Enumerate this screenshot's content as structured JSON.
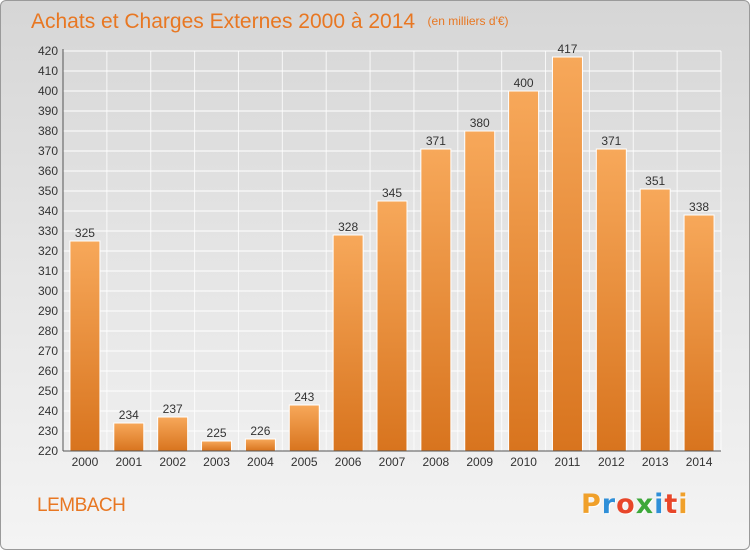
{
  "title": "Achats et Charges Externes 2000 à 2014",
  "unit_note": "(en milliers d'€)",
  "commune": "LEMBACH",
  "logo": {
    "text": "Proxiti",
    "letter_colors": [
      "#f0a02a",
      "#2f8fd8",
      "#e8462a",
      "#3da83a",
      "#2f8fd8",
      "#e8462a",
      "#f0a02a"
    ]
  },
  "colors": {
    "accent": "#e87722",
    "bar_top": "#f7a85a",
    "bar_bottom": "#d8741e",
    "grid": "#ffffff",
    "tick_text": "#333333"
  },
  "chart_data": {
    "type": "bar",
    "categories": [
      "2000",
      "2001",
      "2002",
      "2003",
      "2004",
      "2005",
      "2006",
      "2007",
      "2008",
      "2009",
      "2010",
      "2011",
      "2012",
      "2013",
      "2014"
    ],
    "values": [
      325,
      234,
      237,
      225,
      226,
      243,
      328,
      345,
      371,
      380,
      400,
      417,
      371,
      351,
      338
    ],
    "ylim": [
      220,
      420
    ],
    "yticks": [
      220,
      230,
      240,
      250,
      260,
      270,
      280,
      290,
      300,
      310,
      320,
      330,
      340,
      350,
      360,
      370,
      380,
      390,
      400,
      410,
      420
    ],
    "grid": true,
    "data_labels": true
  }
}
